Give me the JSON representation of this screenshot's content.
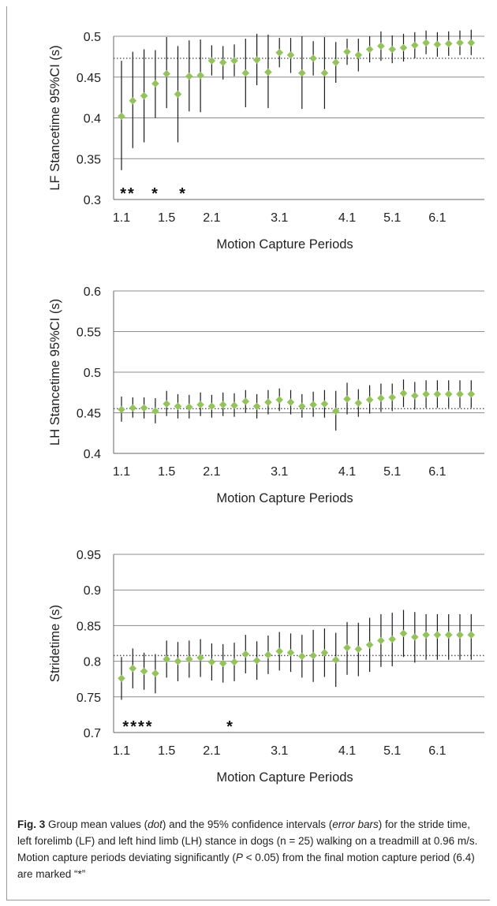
{
  "chart_data": [
    {
      "type": "scatter",
      "ylabel": "LF Stancetime 95%CI (s)",
      "xlabel": "Motion Capture Periods",
      "ylim": [
        0.3,
        0.5
      ],
      "yticks": [
        "0.5",
        "0.45",
        "0.4",
        "0.35",
        "0.3"
      ],
      "xtick_labels": [
        "1.1",
        "1.5",
        "2.1",
        "3.1",
        "4.1",
        "5.1",
        "6.1"
      ],
      "grid": true,
      "reference_line": 0.473,
      "x": [
        "1.1",
        "1.2",
        "1.3",
        "1.4",
        "1.5",
        "1.6",
        "1.7",
        "1.8",
        "2.1",
        "2.2",
        "2.3",
        "2.4",
        "2.5",
        "2.6",
        "3.1",
        "3.2",
        "3.3",
        "3.4",
        "3.5",
        "3.6",
        "4.1",
        "4.2",
        "4.3",
        "4.4",
        "5.1",
        "5.2",
        "5.3",
        "5.4",
        "6.1",
        "6.2",
        "6.3",
        "6.4"
      ],
      "mean": [
        0.402,
        0.421,
        0.427,
        0.442,
        0.454,
        0.429,
        0.451,
        0.452,
        0.47,
        0.468,
        0.47,
        0.455,
        0.471,
        0.456,
        0.48,
        0.477,
        0.455,
        0.473,
        0.455,
        0.468,
        0.481,
        0.477,
        0.484,
        0.488,
        0.484,
        0.486,
        0.489,
        0.492,
        0.49,
        0.491,
        0.492,
        0.492
      ],
      "lower": [
        0.336,
        0.363,
        0.37,
        0.4,
        0.412,
        0.37,
        0.408,
        0.407,
        0.452,
        0.447,
        0.451,
        0.413,
        0.44,
        0.412,
        0.462,
        0.455,
        0.411,
        0.452,
        0.411,
        0.443,
        0.465,
        0.457,
        0.468,
        0.47,
        0.467,
        0.469,
        0.473,
        0.478,
        0.475,
        0.476,
        0.477,
        0.477
      ],
      "upper": [
        0.47,
        0.481,
        0.484,
        0.483,
        0.499,
        0.488,
        0.495,
        0.496,
        0.489,
        0.488,
        0.49,
        0.497,
        0.503,
        0.502,
        0.498,
        0.498,
        0.5,
        0.494,
        0.499,
        0.493,
        0.497,
        0.497,
        0.5,
        0.506,
        0.501,
        0.503,
        0.505,
        0.507,
        0.505,
        0.506,
        0.507,
        0.508
      ],
      "significant": [
        "**",
        "*",
        "*"
      ]
    },
    {
      "type": "scatter",
      "ylabel": "LH Stancetime 95%CI (s)",
      "xlabel": "Motion Capture Periods",
      "ylim": [
        0.4,
        0.6
      ],
      "yticks": [
        "0.6",
        "0.55",
        "0.5",
        "0.45",
        "0.4"
      ],
      "xtick_labels": [
        "1.1",
        "1.5",
        "2.1",
        "3.1",
        "4.1",
        "5.1",
        "6.1"
      ],
      "grid": true,
      "reference_line": 0.455,
      "x": [
        "1.1",
        "1.2",
        "1.3",
        "1.4",
        "1.5",
        "1.6",
        "1.7",
        "1.8",
        "2.1",
        "2.2",
        "2.3",
        "2.4",
        "2.5",
        "2.6",
        "3.1",
        "3.2",
        "3.3",
        "3.4",
        "3.5",
        "3.6",
        "4.1",
        "4.2",
        "4.3",
        "4.4",
        "5.1",
        "5.2",
        "5.3",
        "5.4",
        "6.1",
        "6.2",
        "6.3",
        "6.4"
      ],
      "mean": [
        0.454,
        0.456,
        0.456,
        0.452,
        0.461,
        0.458,
        0.457,
        0.46,
        0.458,
        0.46,
        0.459,
        0.464,
        0.458,
        0.463,
        0.466,
        0.463,
        0.458,
        0.46,
        0.461,
        0.452,
        0.467,
        0.462,
        0.466,
        0.468,
        0.469,
        0.474,
        0.471,
        0.473,
        0.473,
        0.473,
        0.473,
        0.473
      ],
      "lower": [
        0.439,
        0.444,
        0.443,
        0.437,
        0.446,
        0.443,
        0.443,
        0.446,
        0.444,
        0.446,
        0.445,
        0.45,
        0.443,
        0.448,
        0.452,
        0.448,
        0.444,
        0.445,
        0.444,
        0.428,
        0.448,
        0.445,
        0.449,
        0.451,
        0.452,
        0.457,
        0.454,
        0.456,
        0.456,
        0.456,
        0.456,
        0.456
      ],
      "upper": [
        0.47,
        0.469,
        0.469,
        0.468,
        0.477,
        0.473,
        0.472,
        0.475,
        0.472,
        0.475,
        0.474,
        0.478,
        0.473,
        0.478,
        0.48,
        0.478,
        0.473,
        0.476,
        0.478,
        0.477,
        0.487,
        0.479,
        0.484,
        0.486,
        0.486,
        0.491,
        0.488,
        0.49,
        0.49,
        0.49,
        0.49,
        0.49
      ],
      "significant": []
    },
    {
      "type": "scatter",
      "ylabel": "Stridetime (s)",
      "xlabel": "Motion Capture Periods",
      "ylim": [
        0.7,
        0.95
      ],
      "yticks": [
        "0.95",
        "0.9",
        "0.85",
        "0.8",
        "0.75",
        "0.7"
      ],
      "xtick_labels": [
        "1.1",
        "1.5",
        "2.1",
        "3.1",
        "4.1",
        "5.1",
        "6.1"
      ],
      "grid": true,
      "reference_line": 0.808,
      "x": [
        "1.1",
        "1.2",
        "1.3",
        "1.4",
        "1.5",
        "1.6",
        "1.7",
        "1.8",
        "2.1",
        "2.2",
        "2.3",
        "2.4",
        "2.5",
        "2.6",
        "3.1",
        "3.2",
        "3.3",
        "3.4",
        "3.5",
        "3.6",
        "4.1",
        "4.2",
        "4.3",
        "4.4",
        "5.1",
        "5.2",
        "5.3",
        "5.4",
        "6.1",
        "6.2",
        "6.3",
        "6.4"
      ],
      "mean": [
        0.776,
        0.79,
        0.786,
        0.783,
        0.803,
        0.8,
        0.803,
        0.805,
        0.799,
        0.797,
        0.799,
        0.81,
        0.801,
        0.809,
        0.814,
        0.812,
        0.807,
        0.808,
        0.812,
        0.802,
        0.819,
        0.817,
        0.823,
        0.829,
        0.831,
        0.839,
        0.834,
        0.837,
        0.837,
        0.837,
        0.837,
        0.837
      ],
      "lower": [
        0.746,
        0.762,
        0.76,
        0.755,
        0.777,
        0.772,
        0.777,
        0.778,
        0.773,
        0.77,
        0.772,
        0.783,
        0.774,
        0.782,
        0.787,
        0.785,
        0.777,
        0.771,
        0.778,
        0.764,
        0.781,
        0.779,
        0.785,
        0.792,
        0.793,
        0.806,
        0.798,
        0.802,
        0.802,
        0.802,
        0.802,
        0.802
      ],
      "upper": [
        0.806,
        0.818,
        0.812,
        0.81,
        0.829,
        0.827,
        0.829,
        0.831,
        0.825,
        0.824,
        0.826,
        0.837,
        0.828,
        0.836,
        0.841,
        0.839,
        0.837,
        0.844,
        0.846,
        0.84,
        0.855,
        0.854,
        0.861,
        0.866,
        0.868,
        0.872,
        0.869,
        0.866,
        0.866,
        0.866,
        0.866,
        0.866
      ],
      "significant": [
        "****",
        "*"
      ]
    }
  ],
  "colors": {
    "marker": "#94c25d",
    "grid": "#8c8c8c",
    "errorbar": "#1a1a1a"
  },
  "caption": {
    "fig_label": "Fig. 3",
    "text_1": " Group mean values (",
    "italic_1": "dot",
    "text_2": ") and the 95% confidence intervals (",
    "italic_2": "error bars",
    "text_3": ") for the stride time, left forelimb (LF) and left hind limb (LH) stance in dogs (n = 25) walking on a treadmill at 0.96 m/s. Motion capture periods deviating significantly (",
    "italic_3": "P",
    "text_4": " < 0.05) from the final motion capture period (6.4) are marked “*”"
  }
}
